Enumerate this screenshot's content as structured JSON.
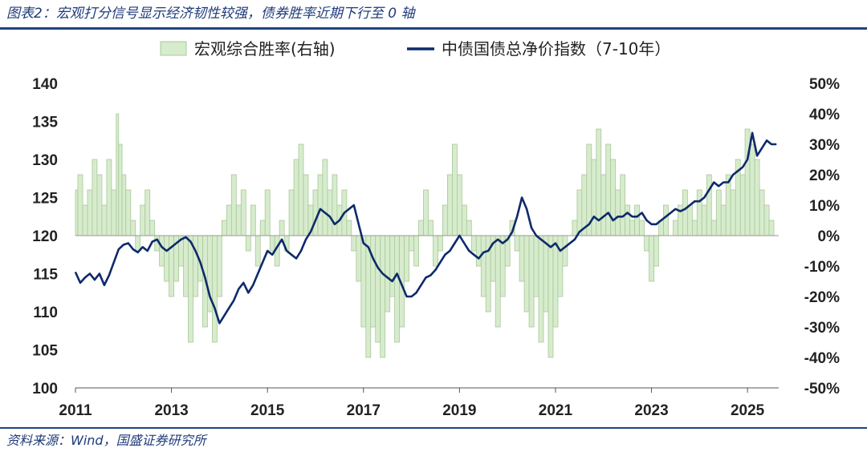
{
  "header": {
    "title": "图表2：宏观打分信号显示经济韧性较强，债券胜率近期下行至 0 轴"
  },
  "footer": {
    "source": "资料来源：Wind，国盛证券研究所"
  },
  "colors": {
    "area_fill": "#d7ebcd",
    "area_stroke": "#a8c99a",
    "line": "#0d2a6b",
    "rule": "#22427f",
    "title": "#1f3b7a"
  },
  "chart_data": {
    "type": "line",
    "title": "",
    "legend_placement": "top-center",
    "grid": false,
    "x_axis": {
      "ticks": [
        "2011",
        "2013",
        "2015",
        "2017",
        "2019",
        "2021",
        "2023",
        "2025"
      ],
      "range": [
        2011.0,
        2025.65
      ]
    },
    "y_left": {
      "ticks": [
        "140",
        "135",
        "130",
        "125",
        "120",
        "115",
        "110",
        "105",
        "100"
      ],
      "range": [
        100,
        140
      ]
    },
    "y_right": {
      "ticks": [
        "50%",
        "40%",
        "30%",
        "20%",
        "10%",
        "0%",
        "-10%",
        "-20%",
        "-30%",
        "-40%",
        "-50%"
      ],
      "range": [
        -0.5,
        0.5
      ]
    },
    "series": [
      {
        "name": "宏观综合胜率(右轴)",
        "type": "area",
        "axis": "right",
        "x": [
          2011.0,
          2011.05,
          2011.15,
          2011.25,
          2011.35,
          2011.45,
          2011.55,
          2011.65,
          2011.75,
          2011.85,
          2011.9,
          2011.97,
          2012.05,
          2012.15,
          2012.25,
          2012.35,
          2012.45,
          2012.55,
          2012.65,
          2012.75,
          2012.85,
          2012.95,
          2013.05,
          2013.15,
          2013.25,
          2013.35,
          2013.45,
          2013.55,
          2013.65,
          2013.75,
          2013.85,
          2013.95,
          2014.05,
          2014.15,
          2014.25,
          2014.35,
          2014.45,
          2014.55,
          2014.65,
          2014.75,
          2014.85,
          2014.95,
          2015.05,
          2015.15,
          2015.25,
          2015.35,
          2015.45,
          2015.55,
          2015.65,
          2015.75,
          2015.85,
          2015.95,
          2016.05,
          2016.15,
          2016.25,
          2016.35,
          2016.45,
          2016.55,
          2016.65,
          2016.75,
          2016.85,
          2016.95,
          2017.05,
          2017.15,
          2017.25,
          2017.35,
          2017.45,
          2017.55,
          2017.65,
          2017.75,
          2017.85,
          2017.95,
          2018.05,
          2018.15,
          2018.25,
          2018.35,
          2018.45,
          2018.55,
          2018.65,
          2018.75,
          2018.85,
          2018.95,
          2019.05,
          2019.15,
          2019.25,
          2019.35,
          2019.45,
          2019.55,
          2019.65,
          2019.75,
          2019.85,
          2019.95,
          2020.05,
          2020.15,
          2020.25,
          2020.35,
          2020.45,
          2020.55,
          2020.65,
          2020.75,
          2020.85,
          2020.95,
          2021.05,
          2021.15,
          2021.25,
          2021.35,
          2021.45,
          2021.55,
          2021.65,
          2021.75,
          2021.85,
          2021.95,
          2022.05,
          2022.15,
          2022.25,
          2022.35,
          2022.45,
          2022.55,
          2022.65,
          2022.75,
          2022.85,
          2022.95,
          2023.05,
          2023.15,
          2023.25,
          2023.35,
          2023.45,
          2023.55,
          2023.65,
          2023.75,
          2023.85,
          2023.95,
          2024.05,
          2024.15,
          2024.25,
          2024.35,
          2024.45,
          2024.55,
          2024.65,
          2024.75,
          2024.85,
          2024.95,
          2025.05,
          2025.15,
          2025.25,
          2025.35,
          2025.45,
          2025.55
        ],
        "values": [
          0.15,
          0.2,
          0.1,
          0.15,
          0.25,
          0.2,
          0.1,
          0.25,
          0.15,
          0.4,
          0.3,
          0.2,
          0.15,
          0.05,
          -0.05,
          0.1,
          0.15,
          0.05,
          -0.05,
          -0.1,
          -0.15,
          -0.2,
          -0.15,
          -0.1,
          -0.2,
          -0.35,
          -0.2,
          -0.15,
          -0.3,
          -0.25,
          -0.35,
          -0.2,
          0.05,
          0.1,
          0.2,
          0.1,
          0.15,
          -0.05,
          0.1,
          -0.1,
          0.05,
          0.15,
          -0.05,
          -0.1,
          0.05,
          -0.05,
          0.15,
          0.25,
          0.3,
          0.2,
          0.1,
          0.15,
          0.2,
          0.25,
          0.15,
          0.2,
          0.1,
          0.15,
          0.05,
          -0.05,
          -0.15,
          -0.3,
          -0.4,
          -0.3,
          -0.35,
          -0.4,
          -0.25,
          -0.2,
          -0.35,
          -0.3,
          -0.15,
          -0.05,
          -0.1,
          0.05,
          0.15,
          0.05,
          -0.1,
          -0.05,
          0.1,
          0.2,
          0.3,
          0.2,
          0.1,
          0.05,
          -0.05,
          -0.1,
          -0.2,
          -0.25,
          -0.15,
          -0.3,
          -0.2,
          -0.1,
          0.05,
          -0.05,
          -0.15,
          -0.25,
          -0.3,
          -0.2,
          -0.35,
          -0.25,
          -0.4,
          -0.3,
          -0.2,
          -0.1,
          0.0,
          0.05,
          0.15,
          0.2,
          0.3,
          0.25,
          0.35,
          0.2,
          0.3,
          0.25,
          0.15,
          0.2,
          0.1,
          0.05,
          0.1,
          0.05,
          -0.05,
          -0.15,
          -0.1,
          0.05,
          0.1,
          0.0,
          0.05,
          0.1,
          0.15,
          0.1,
          0.05,
          0.15,
          0.1,
          0.2,
          0.05,
          0.15,
          0.1,
          0.2,
          0.15,
          0.25,
          0.2,
          0.35,
          0.3,
          0.25,
          0.15,
          0.1,
          0.05,
          0.0
        ]
      },
      {
        "name": "中债国债总净价指数（7-10年）",
        "type": "line",
        "axis": "left",
        "x": [
          2011.0,
          2011.1,
          2011.2,
          2011.3,
          2011.4,
          2011.5,
          2011.6,
          2011.7,
          2011.8,
          2011.9,
          2012.0,
          2012.1,
          2012.2,
          2012.3,
          2012.4,
          2012.5,
          2012.6,
          2012.7,
          2012.8,
          2012.9,
          2013.0,
          2013.1,
          2013.2,
          2013.3,
          2013.4,
          2013.5,
          2013.6,
          2013.7,
          2013.8,
          2013.9,
          2014.0,
          2014.1,
          2014.2,
          2014.3,
          2014.4,
          2014.5,
          2014.6,
          2014.7,
          2014.8,
          2014.9,
          2015.0,
          2015.1,
          2015.2,
          2015.3,
          2015.4,
          2015.5,
          2015.6,
          2015.7,
          2015.8,
          2015.9,
          2016.0,
          2016.1,
          2016.2,
          2016.3,
          2016.4,
          2016.5,
          2016.6,
          2016.7,
          2016.8,
          2016.9,
          2017.0,
          2017.1,
          2017.2,
          2017.3,
          2017.4,
          2017.5,
          2017.6,
          2017.7,
          2017.8,
          2017.9,
          2018.0,
          2018.1,
          2018.2,
          2018.3,
          2018.4,
          2018.5,
          2018.6,
          2018.7,
          2018.8,
          2018.9,
          2019.0,
          2019.1,
          2019.2,
          2019.3,
          2019.4,
          2019.5,
          2019.6,
          2019.7,
          2019.8,
          2019.9,
          2020.0,
          2020.1,
          2020.2,
          2020.3,
          2020.4,
          2020.5,
          2020.6,
          2020.7,
          2020.8,
          2020.9,
          2021.0,
          2021.1,
          2021.2,
          2021.3,
          2021.4,
          2021.5,
          2021.6,
          2021.7,
          2021.8,
          2021.9,
          2022.0,
          2022.1,
          2022.2,
          2022.3,
          2022.4,
          2022.5,
          2022.6,
          2022.7,
          2022.8,
          2022.9,
          2023.0,
          2023.1,
          2023.2,
          2023.3,
          2023.4,
          2023.5,
          2023.6,
          2023.7,
          2023.8,
          2023.9,
          2024.0,
          2024.1,
          2024.2,
          2024.3,
          2024.4,
          2024.5,
          2024.6,
          2024.7,
          2024.8,
          2024.9,
          2025.0,
          2025.1,
          2025.2,
          2025.3,
          2025.4,
          2025.5,
          2025.6
        ],
        "values": [
          115.2,
          113.8,
          114.5,
          115.0,
          114.2,
          115.0,
          113.5,
          114.8,
          116.5,
          118.2,
          118.8,
          119.0,
          118.2,
          117.8,
          118.5,
          118.0,
          119.2,
          119.5,
          118.5,
          118.0,
          118.5,
          119.0,
          119.5,
          119.8,
          119.2,
          118.0,
          116.5,
          114.5,
          112.0,
          110.5,
          108.5,
          109.5,
          110.5,
          111.5,
          113.0,
          113.8,
          112.5,
          113.5,
          115.0,
          116.5,
          118.0,
          117.5,
          118.5,
          119.5,
          118.0,
          117.5,
          117.0,
          118.0,
          119.5,
          120.5,
          122.0,
          123.5,
          123.0,
          122.5,
          121.5,
          122.0,
          123.0,
          123.5,
          124.0,
          121.5,
          119.0,
          118.5,
          117.0,
          115.8,
          115.0,
          114.5,
          114.0,
          115.0,
          113.5,
          112.0,
          112.0,
          112.5,
          113.5,
          114.5,
          114.8,
          115.5,
          116.5,
          117.5,
          118.0,
          119.0,
          120.0,
          119.0,
          118.0,
          117.5,
          117.0,
          117.8,
          118.0,
          119.0,
          119.5,
          119.0,
          119.5,
          120.5,
          122.5,
          125.0,
          123.5,
          121.0,
          120.0,
          119.5,
          119.0,
          118.5,
          119.0,
          118.0,
          118.5,
          119.0,
          119.5,
          120.5,
          121.0,
          121.5,
          122.5,
          122.0,
          122.5,
          123.0,
          122.0,
          122.5,
          122.5,
          123.0,
          122.5,
          122.5,
          123.0,
          122.0,
          121.5,
          121.5,
          122.0,
          122.5,
          123.0,
          123.5,
          123.2,
          123.5,
          124.0,
          124.5,
          124.5,
          125.0,
          126.0,
          127.0,
          126.5,
          127.0,
          127.0,
          128.0,
          128.5,
          129.0,
          130.0,
          133.5,
          130.5,
          131.5,
          132.5,
          132.0,
          132.0
        ]
      }
    ]
  }
}
